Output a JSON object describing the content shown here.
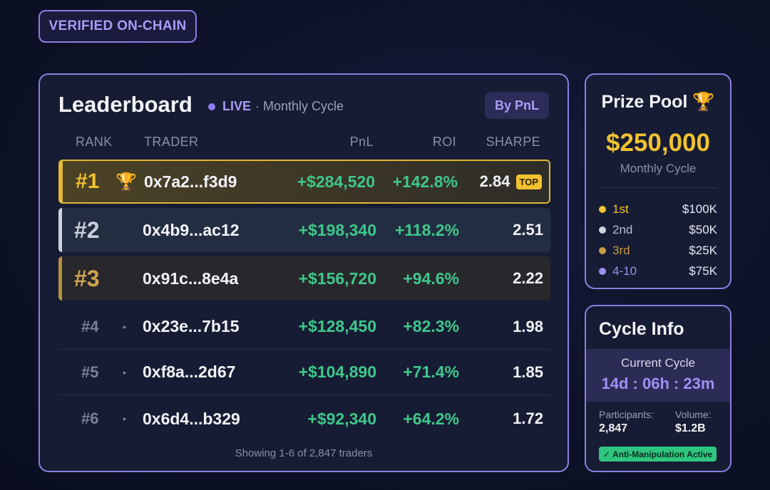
{
  "badge": {
    "verified": "VERIFIED ON-CHAIN"
  },
  "leaderboard": {
    "title": "Leaderboard",
    "live": "LIVE",
    "cycle": "· Monthly Cycle",
    "sort_button": "By PnL",
    "columns": {
      "rank": "RANK",
      "trader": "TRADER",
      "pnl": "PnL",
      "roi": "ROI",
      "sharpe": "SHARPE"
    },
    "rows": [
      {
        "rank": "#1",
        "trader": "0x7a2...f3d9",
        "pnl": "+$284,520",
        "roi": "+142.8%",
        "sharpe": "2.84",
        "tag": "TOP",
        "icon": "trophy-icon"
      },
      {
        "rank": "#2",
        "trader": "0x4b9...ac12",
        "pnl": "+$198,340",
        "roi": "+118.2%",
        "sharpe": "2.51"
      },
      {
        "rank": "#3",
        "trader": "0x91c...8e4a",
        "pnl": "+$156,720",
        "roi": "+94.6%",
        "sharpe": "2.22"
      },
      {
        "rank": "#4",
        "trader": "0x23e...7b15",
        "pnl": "+$128,450",
        "roi": "+82.3%",
        "sharpe": "1.98"
      },
      {
        "rank": "#5",
        "trader": "0xf8a...2d67",
        "pnl": "+$104,890",
        "roi": "+71.4%",
        "sharpe": "1.85"
      },
      {
        "rank": "#6",
        "trader": "0x6d4...b329",
        "pnl": "+$92,340",
        "roi": "+64.2%",
        "sharpe": "1.72"
      }
    ],
    "footer": "Showing 1-6 of 2,847 traders"
  },
  "prize_pool": {
    "title": "Prize Pool",
    "icon": "trophy-icon",
    "amount": "$250,000",
    "subtitle": "Monthly Cycle",
    "tiers": [
      {
        "label": "1st",
        "amount": "$100K",
        "color": "#f2c230"
      },
      {
        "label": "2nd",
        "amount": "$50K",
        "color": "#cfd4de"
      },
      {
        "label": "3rd",
        "amount": "$25K",
        "color": "#c89a45"
      },
      {
        "label": "4-10",
        "amount": "$75K",
        "color": "#9e90f2"
      }
    ]
  },
  "cycle_info": {
    "title": "Cycle Info",
    "current_label": "Current Cycle",
    "timer": "14d : 06h : 23m",
    "participants_label": "Participants:",
    "participants": "2,847",
    "volume_label": "Volume:",
    "volume": "$1.2B",
    "badge": "✓ Anti-Manipulation Active"
  },
  "colors": {
    "accent": "#8b7fe0",
    "gold": "#f2c230",
    "positive": "#3fc78b"
  }
}
